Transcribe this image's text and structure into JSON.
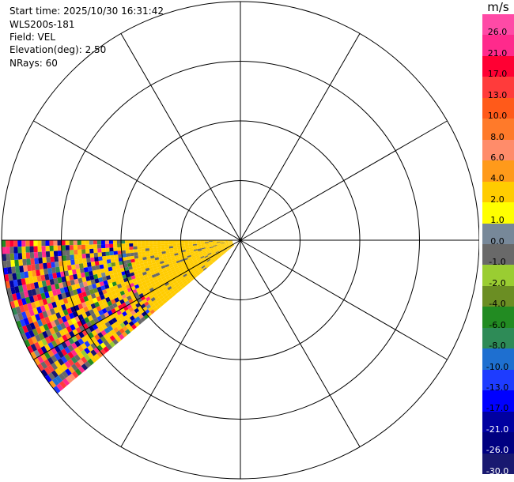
{
  "info": {
    "start_time": "Start time: 2025/10/30 16:31:42",
    "instrument": "WLS200s-181",
    "field": "Field: VEL",
    "elevation": "Elevation(deg): 2.50",
    "nrays": "NRays: 60"
  },
  "chart_data": {
    "type": "heatmap",
    "projection": "polar-ppi",
    "field": "VEL",
    "units": "m/s",
    "rings": 4,
    "spokes": 12,
    "sector_azimuth_deg": [
      180,
      220
    ],
    "dominant_value_band": [
      2.0,
      4.0
    ],
    "colorbar": {
      "title": "m/s",
      "ticks": [
        "26.0",
        "21.0",
        "17.0",
        "13.0",
        "10.0",
        "8.0",
        "6.0",
        "4.0",
        "2.0",
        "1.0",
        "0.0",
        "-1.0",
        "-2.0",
        "-4.0",
        "-6.0",
        "-8.0",
        "-10.0",
        "-13.0",
        "-17.0",
        "-21.0",
        "-26.0",
        "-30.0"
      ],
      "colors": [
        "#ff4aa6",
        "#ff2a8c",
        "#ff0033",
        "#ff3b3b",
        "#ff5a1a",
        "#ff7a2a",
        "#ff8c6a",
        "#ff9a1a",
        "#ffcc00",
        "#ffff00",
        "#778899",
        "#696969",
        "#9acd32",
        "#6b8e23",
        "#228b22",
        "#2e8b57",
        "#1e6fd0",
        "#1e3cff",
        "#0000ff",
        "#0000a0",
        "#000080",
        "#191970"
      ]
    }
  }
}
